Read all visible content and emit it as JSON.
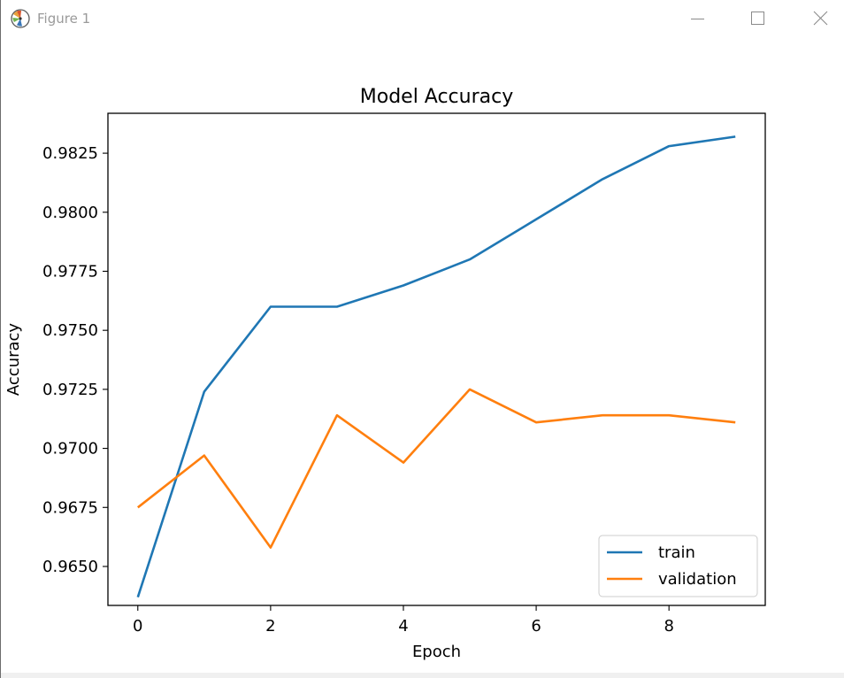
{
  "window": {
    "title": "Figure 1",
    "icons": {
      "app": "matplotlib-logo-icon",
      "minimize": "minimize-icon",
      "maximize": "maximize-icon",
      "close": "close-icon"
    }
  },
  "chart_data": {
    "type": "line",
    "title": "Model Accuracy",
    "xlabel": "Epoch",
    "ylabel": "Accuracy",
    "x": [
      0,
      1,
      2,
      3,
      4,
      5,
      6,
      7,
      8,
      9
    ],
    "xlim": [
      -0.45,
      9.45
    ],
    "ylim": [
      0.96335,
      0.98419
    ],
    "xticks": [
      0,
      2,
      4,
      6,
      8
    ],
    "xtick_labels": [
      "0",
      "2",
      "4",
      "6",
      "8"
    ],
    "yticks": [
      0.965,
      0.9675,
      0.97,
      0.9725,
      0.975,
      0.9775,
      0.98,
      0.9825
    ],
    "ytick_labels": [
      "0.9650",
      "0.9675",
      "0.9700",
      "0.9725",
      "0.9750",
      "0.9775",
      "0.9800",
      "0.9825"
    ],
    "grid": false,
    "legend": "lower-right",
    "series": [
      {
        "name": "train",
        "color": "#1f77b4",
        "values": [
          0.9637,
          0.9724,
          0.976,
          0.976,
          0.9769,
          0.978,
          0.9797,
          0.9814,
          0.9828,
          0.9832
        ]
      },
      {
        "name": "validation",
        "color": "#ff7f0e",
        "values": [
          0.9675,
          0.9697,
          0.9658,
          0.9714,
          0.9694,
          0.9725,
          0.9711,
          0.9714,
          0.9714,
          0.9711
        ]
      }
    ]
  }
}
